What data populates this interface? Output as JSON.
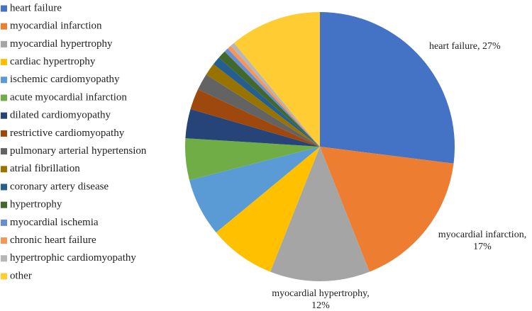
{
  "chart_data": {
    "type": "pie",
    "categories": [
      "heart failure",
      "myocardial infarction",
      "myocardial hypertrophy",
      "cardiac hypertrophy",
      "ischemic cardiomyopathy",
      "acute myocardial infarction",
      "dilated cardiomyopathy",
      "restrictive cardiomyopathy",
      "pulmonary arterial hypertension",
      "atrial fibrillation",
      "coronary artery disease",
      "hypertrophy",
      "myocardial ischemia",
      "chronic heart failure",
      "hypertrophic cardiomyopathy",
      "other"
    ],
    "values": [
      27,
      17,
      12,
      8,
      7,
      5,
      3.5,
      2.5,
      2,
      1.5,
      1,
      1,
      0.5,
      0.5,
      0.5,
      11
    ],
    "value_labels": [
      "heart failure, 27%",
      "myocardial infarction, 17%",
      "myocardial hypertrophy, 12%",
      null,
      null,
      null,
      null,
      null,
      null,
      null,
      null,
      null,
      null,
      null,
      null,
      null
    ],
    "colors": [
      "#4472c4",
      "#ed7d31",
      "#a5a5a5",
      "#ffc000",
      "#5b9bd5",
      "#70ad47",
      "#264478",
      "#9e480e",
      "#636363",
      "#997300",
      "#255e91",
      "#43682b",
      "#698ed0",
      "#f1975a",
      "#b7b7b7",
      "#ffcd33"
    ],
    "legend": "left"
  }
}
